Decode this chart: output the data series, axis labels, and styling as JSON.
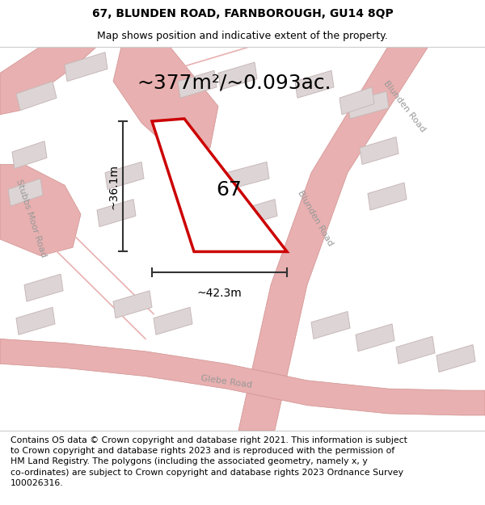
{
  "title_line1": "67, BLUNDEN ROAD, FARNBOROUGH, GU14 8QP",
  "title_line2": "Map shows position and indicative extent of the property.",
  "area_label": "~377m²/~0.093ac.",
  "plot_number": "67",
  "width_label": "~42.3m",
  "height_label": "~36.1m",
  "footer_text": "Contains OS data © Crown copyright and database right 2021. This information is subject to Crown copyright and database rights 2023 and is reproduced with the permission of HM Land Registry. The polygons (including the associated geometry, namely x, y co-ordinates) are subject to Crown copyright and database rights 2023 Ordnance Survey 100026316.",
  "map_bg": "#f2eeee",
  "plot_color": "#cc0000",
  "road_color": "#e8b0b0",
  "road_edge": "#d09090",
  "building_fill": "#ddd5d5",
  "building_edge": "#c8b8b8",
  "dim_color": "#333333",
  "label_color": "#999999",
  "title_fontsize": 10,
  "subtitle_fontsize": 9,
  "area_fontsize": 18,
  "number_fontsize": 18,
  "dim_fontsize": 10,
  "road_label_fontsize": 8,
  "footer_fontsize": 7.8
}
